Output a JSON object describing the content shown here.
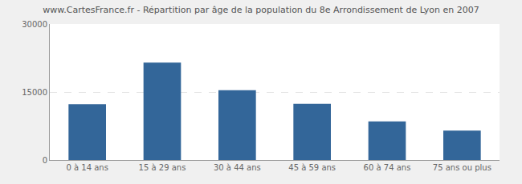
{
  "chart_data": {
    "type": "bar",
    "title": "www.CartesFrance.fr - Répartition par âge de la population du 8e Arrondissement de Lyon en 2007",
    "categories": [
      "0 à 14 ans",
      "15 à 29 ans",
      "30 à 44 ans",
      "45 à 59 ans",
      "60 à 74 ans",
      "75 ans ou plus"
    ],
    "values": [
      12300,
      21500,
      15400,
      12400,
      8500,
      6500
    ],
    "color": "#336699",
    "ylim": [
      0,
      30000
    ],
    "yticks": [
      0,
      15000,
      30000
    ],
    "grid": true
  }
}
